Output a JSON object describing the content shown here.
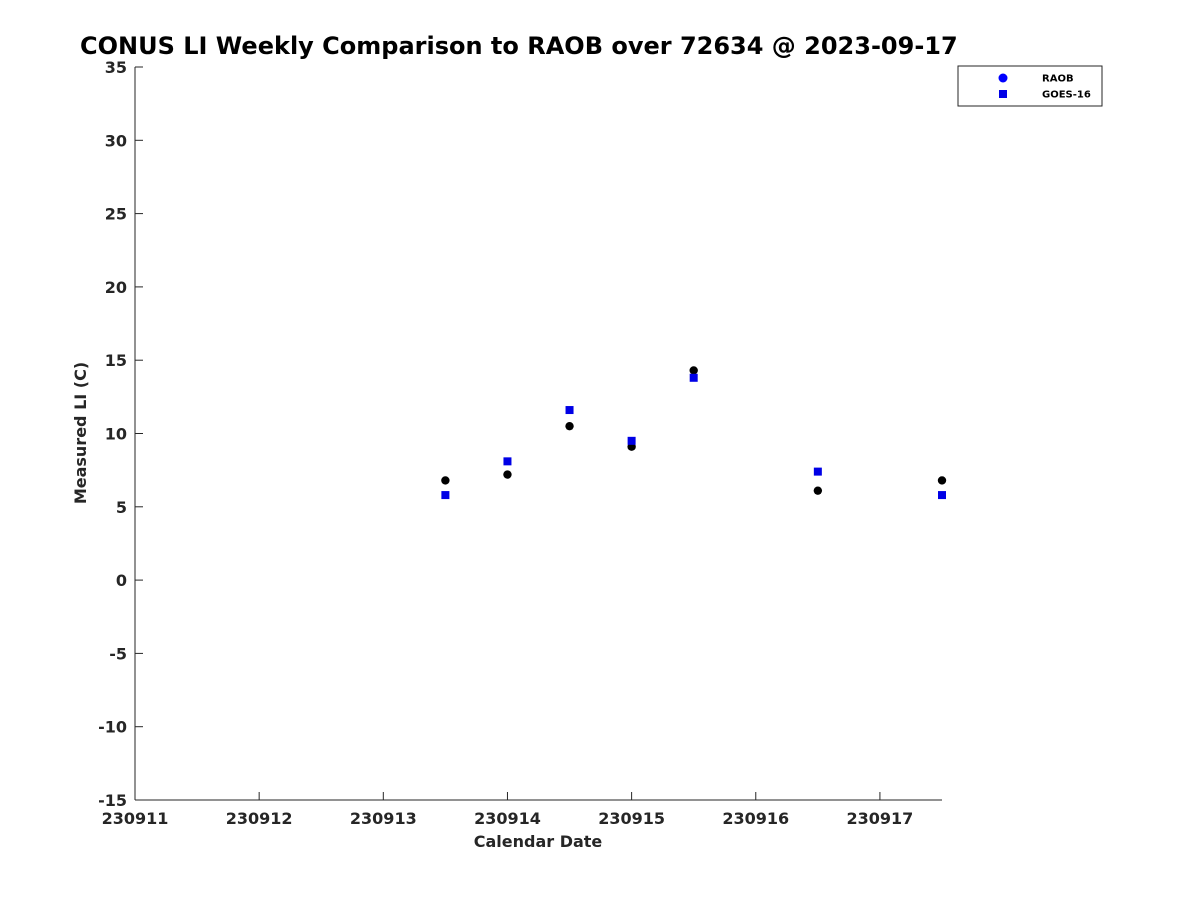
{
  "colors": {
    "raob": "#000000",
    "goes": "#0000e6",
    "legend_raob_marker": "#0000ff",
    "axis": "#262626"
  },
  "chart_data": {
    "type": "scatter",
    "title": "CONUS LI Weekly Comparison to RAOB over 72634 @ 2023-09-17",
    "xlabel": "Calendar Date",
    "ylabel": "Measured LI (C)",
    "xlim": [
      0,
      6.5
    ],
    "ylim": [
      -15,
      35
    ],
    "x_ticks": [
      0,
      1,
      2,
      3,
      4,
      5,
      6
    ],
    "x_tick_labels": [
      "230911",
      "230912",
      "230913",
      "230914",
      "230915",
      "230916",
      "230917"
    ],
    "y_ticks": [
      -15,
      -10,
      -5,
      0,
      5,
      10,
      15,
      20,
      25,
      30,
      35
    ],
    "y_tick_labels": [
      "-15",
      "-10",
      "-5",
      "0",
      "5",
      "10",
      "15",
      "20",
      "25",
      "30",
      "35"
    ],
    "legend": {
      "position": "top-right",
      "entries": [
        "RAOB",
        "GOES-16"
      ]
    },
    "series": [
      {
        "name": "RAOB",
        "marker": "circle",
        "x": [
          2.5,
          3.0,
          3.5,
          4.0,
          4.5,
          5.5,
          6.5
        ],
        "y": [
          6.8,
          7.2,
          10.5,
          9.1,
          14.3,
          6.1,
          6.8
        ]
      },
      {
        "name": "GOES-16",
        "marker": "square",
        "x": [
          2.5,
          3.0,
          3.5,
          4.0,
          4.5,
          5.5,
          6.5
        ],
        "y": [
          5.8,
          8.1,
          11.6,
          9.5,
          13.8,
          7.4,
          5.8
        ]
      }
    ]
  }
}
